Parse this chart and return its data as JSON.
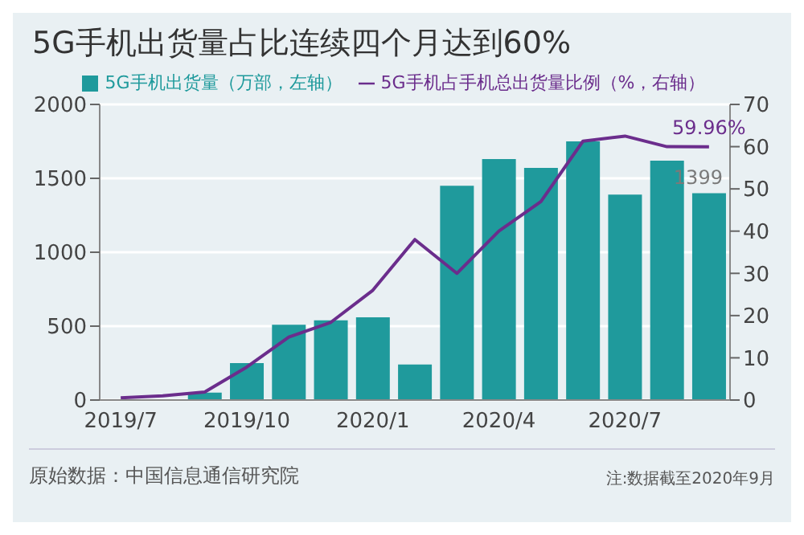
{
  "chart_data": {
    "type": "bar",
    "title": "5G手机出货量占比连续四个月达到60%",
    "categories": [
      "2019/7",
      null,
      null,
      "2019/10",
      null,
      null,
      "2020/1",
      null,
      null,
      "2020/4",
      null,
      null,
      "2020/7",
      null,
      null
    ],
    "series": [
      {
        "name": "5G手机出货量（万部，左轴）",
        "color": "#1f9a9c",
        "values": [
          0,
          0,
          50,
          250,
          510,
          540,
          560,
          240,
          1450,
          1630,
          1570,
          1750,
          1390,
          1620,
          1399
        ],
        "value_labels": [
          null,
          null,
          null,
          null,
          null,
          null,
          null,
          null,
          null,
          null,
          null,
          null,
          null,
          null,
          "1399"
        ]
      },
      {
        "name": "5G手机占手机总出货量比例（%，右轴）",
        "type": "line",
        "axis": "y2",
        "color": "#6b2d8c",
        "values": [
          0.5,
          1,
          1.9,
          7.8,
          14.9,
          18.4,
          26,
          38,
          30,
          40,
          47,
          61.3,
          62.5,
          60,
          59.96
        ],
        "value_labels": [
          null,
          null,
          null,
          null,
          null,
          null,
          null,
          null,
          null,
          null,
          null,
          null,
          null,
          null,
          "59.96%"
        ]
      }
    ],
    "ylim": [
      0,
      2000
    ],
    "yticks": [
      0,
      500,
      1000,
      1500,
      2000
    ],
    "y2lim": [
      0,
      70
    ],
    "y2ticks": [
      0,
      10,
      20,
      30,
      40,
      50,
      60,
      70
    ],
    "grid": "y",
    "legend": "top",
    "marker": "none",
    "annotations": [
      "原始数据：中国信息通信研究院",
      "注:数据截至2020年9月"
    ]
  }
}
